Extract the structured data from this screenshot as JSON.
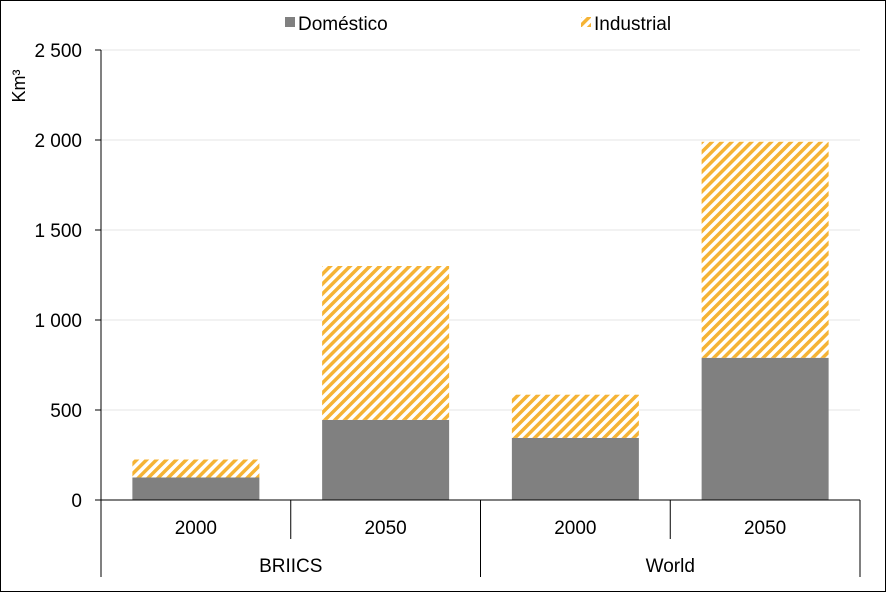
{
  "chart_data": {
    "type": "bar",
    "stacked": true,
    "title": "",
    "xlabel": "",
    "ylabel": "Km³",
    "ylim": [
      0,
      2500
    ],
    "yticks": [
      0,
      500,
      1000,
      1500,
      2000,
      2500
    ],
    "ytick_labels": [
      "0",
      "500",
      "1 000",
      "1 500",
      "2 000",
      "2 500"
    ],
    "grid": true,
    "legend_position": "top",
    "groups": [
      {
        "label": "BRIICS",
        "categories": [
          "2000",
          "2050"
        ]
      },
      {
        "label": "World",
        "categories": [
          "2000",
          "2050"
        ]
      }
    ],
    "categories": [
      "2000",
      "2050",
      "2000",
      "2050"
    ],
    "series": [
      {
        "name": "Doméstico",
        "color": "#808080",
        "pattern": "solid",
        "values": [
          125,
          445,
          345,
          790
        ]
      },
      {
        "name": "Industrial",
        "color": "#f5b335",
        "pattern": "diagonal-hatch",
        "values": [
          100,
          855,
          240,
          1200
        ]
      }
    ]
  }
}
